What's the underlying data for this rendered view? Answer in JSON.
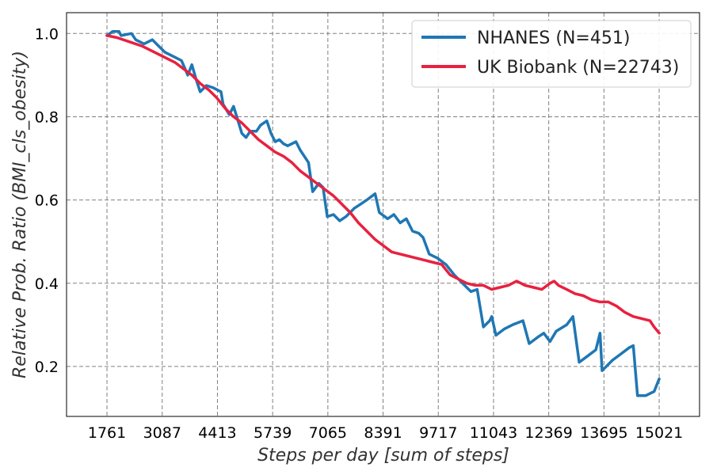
{
  "chart_data": {
    "type": "line",
    "title": "",
    "xlabel": "Steps per day [sum of steps]",
    "ylabel": "Relative Prob. Ratio (BMI_cls_obesity)",
    "x_ticks": [
      1761,
      3087,
      4413,
      5739,
      7065,
      8391,
      9717,
      11043,
      12369,
      13695,
      15021
    ],
    "xlim": [
      790,
      15990
    ],
    "y_ticks": [
      0.2,
      0.4,
      0.6,
      0.8,
      1.0
    ],
    "y_tick_labels": [
      "0.2",
      "0.4",
      "0.6",
      "0.8",
      "1.0"
    ],
    "ylim": [
      0.08,
      1.05
    ],
    "grid": true,
    "legend_position": "top-right",
    "series": [
      {
        "name": "NHANES (N=451)",
        "color": "#1f77b4",
        "points": [
          [
            1761,
            0.995
          ],
          [
            1900,
            1.005
          ],
          [
            2050,
            1.005
          ],
          [
            2100,
            0.995
          ],
          [
            2350,
            1.0
          ],
          [
            2450,
            0.985
          ],
          [
            2650,
            0.975
          ],
          [
            2850,
            0.985
          ],
          [
            3000,
            0.97
          ],
          [
            3150,
            0.955
          ],
          [
            3350,
            0.945
          ],
          [
            3550,
            0.935
          ],
          [
            3700,
            0.9
          ],
          [
            3800,
            0.925
          ],
          [
            3900,
            0.89
          ],
          [
            4000,
            0.86
          ],
          [
            4150,
            0.875
          ],
          [
            4300,
            0.87
          ],
          [
            4500,
            0.86
          ],
          [
            4550,
            0.83
          ],
          [
            4700,
            0.805
          ],
          [
            4800,
            0.825
          ],
          [
            5000,
            0.76
          ],
          [
            5100,
            0.75
          ],
          [
            5200,
            0.765
          ],
          [
            5350,
            0.765
          ],
          [
            5450,
            0.78
          ],
          [
            5600,
            0.79
          ],
          [
            5700,
            0.76
          ],
          [
            5800,
            0.74
          ],
          [
            5900,
            0.745
          ],
          [
            6000,
            0.735
          ],
          [
            6100,
            0.73
          ],
          [
            6300,
            0.74
          ],
          [
            6400,
            0.72
          ],
          [
            6600,
            0.69
          ],
          [
            6700,
            0.62
          ],
          [
            6850,
            0.64
          ],
          [
            6950,
            0.63
          ],
          [
            7050,
            0.56
          ],
          [
            7200,
            0.565
          ],
          [
            7350,
            0.55
          ],
          [
            7500,
            0.56
          ],
          [
            7700,
            0.58
          ],
          [
            7850,
            0.59
          ],
          [
            8000,
            0.6
          ],
          [
            8200,
            0.615
          ],
          [
            8300,
            0.57
          ],
          [
            8500,
            0.555
          ],
          [
            8650,
            0.565
          ],
          [
            8800,
            0.545
          ],
          [
            8950,
            0.555
          ],
          [
            9100,
            0.525
          ],
          [
            9250,
            0.52
          ],
          [
            9350,
            0.51
          ],
          [
            9500,
            0.47
          ],
          [
            9700,
            0.46
          ],
          [
            9900,
            0.445
          ],
          [
            10100,
            0.42
          ],
          [
            10300,
            0.4
          ],
          [
            10500,
            0.38
          ],
          [
            10650,
            0.385
          ],
          [
            10800,
            0.295
          ],
          [
            10950,
            0.31
          ],
          [
            11000,
            0.32
          ],
          [
            11100,
            0.275
          ],
          [
            11300,
            0.29
          ],
          [
            11500,
            0.3
          ],
          [
            11750,
            0.31
          ],
          [
            11900,
            0.255
          ],
          [
            12100,
            0.27
          ],
          [
            12250,
            0.28
          ],
          [
            12400,
            0.26
          ],
          [
            12550,
            0.285
          ],
          [
            12800,
            0.3
          ],
          [
            12950,
            0.32
          ],
          [
            13100,
            0.21
          ],
          [
            13300,
            0.225
          ],
          [
            13500,
            0.24
          ],
          [
            13600,
            0.28
          ],
          [
            13650,
            0.19
          ],
          [
            13900,
            0.215
          ],
          [
            14100,
            0.23
          ],
          [
            14300,
            0.245
          ],
          [
            14400,
            0.25
          ],
          [
            14500,
            0.13
          ],
          [
            14700,
            0.13
          ],
          [
            14800,
            0.135
          ],
          [
            14900,
            0.14
          ],
          [
            15000,
            0.165
          ],
          [
            15021,
            0.17
          ]
        ]
      },
      {
        "name": "UK Biobank (N=22743)",
        "color": "#e8213f",
        "points": [
          [
            1761,
            0.995
          ],
          [
            2000,
            0.99
          ],
          [
            2300,
            0.98
          ],
          [
            2600,
            0.97
          ],
          [
            2900,
            0.955
          ],
          [
            3200,
            0.94
          ],
          [
            3400,
            0.93
          ],
          [
            3600,
            0.915
          ],
          [
            3800,
            0.9
          ],
          [
            4000,
            0.88
          ],
          [
            4200,
            0.865
          ],
          [
            4400,
            0.845
          ],
          [
            4600,
            0.82
          ],
          [
            4800,
            0.8
          ],
          [
            5000,
            0.785
          ],
          [
            5200,
            0.765
          ],
          [
            5400,
            0.745
          ],
          [
            5600,
            0.73
          ],
          [
            5800,
            0.715
          ],
          [
            6000,
            0.705
          ],
          [
            6200,
            0.69
          ],
          [
            6400,
            0.67
          ],
          [
            6600,
            0.655
          ],
          [
            6800,
            0.64
          ],
          [
            7000,
            0.625
          ],
          [
            7200,
            0.61
          ],
          [
            7400,
            0.59
          ],
          [
            7600,
            0.57
          ],
          [
            7800,
            0.545
          ],
          [
            8000,
            0.525
          ],
          [
            8200,
            0.505
          ],
          [
            8400,
            0.49
          ],
          [
            8600,
            0.475
          ],
          [
            8800,
            0.47
          ],
          [
            9000,
            0.465
          ],
          [
            9200,
            0.46
          ],
          [
            9400,
            0.455
          ],
          [
            9600,
            0.45
          ],
          [
            9800,
            0.445
          ],
          [
            10000,
            0.42
          ],
          [
            10200,
            0.41
          ],
          [
            10400,
            0.4
          ],
          [
            10600,
            0.395
          ],
          [
            10800,
            0.395
          ],
          [
            11000,
            0.385
          ],
          [
            11200,
            0.39
          ],
          [
            11400,
            0.395
          ],
          [
            11600,
            0.405
          ],
          [
            11800,
            0.395
          ],
          [
            12000,
            0.39
          ],
          [
            12200,
            0.385
          ],
          [
            12400,
            0.4
          ],
          [
            12500,
            0.405
          ],
          [
            12600,
            0.395
          ],
          [
            12800,
            0.385
          ],
          [
            13000,
            0.375
          ],
          [
            13200,
            0.37
          ],
          [
            13400,
            0.36
          ],
          [
            13600,
            0.355
          ],
          [
            13800,
            0.355
          ],
          [
            14000,
            0.345
          ],
          [
            14200,
            0.33
          ],
          [
            14400,
            0.32
          ],
          [
            14600,
            0.315
          ],
          [
            14800,
            0.31
          ],
          [
            14900,
            0.295
          ],
          [
            15021,
            0.28
          ]
        ]
      }
    ]
  }
}
